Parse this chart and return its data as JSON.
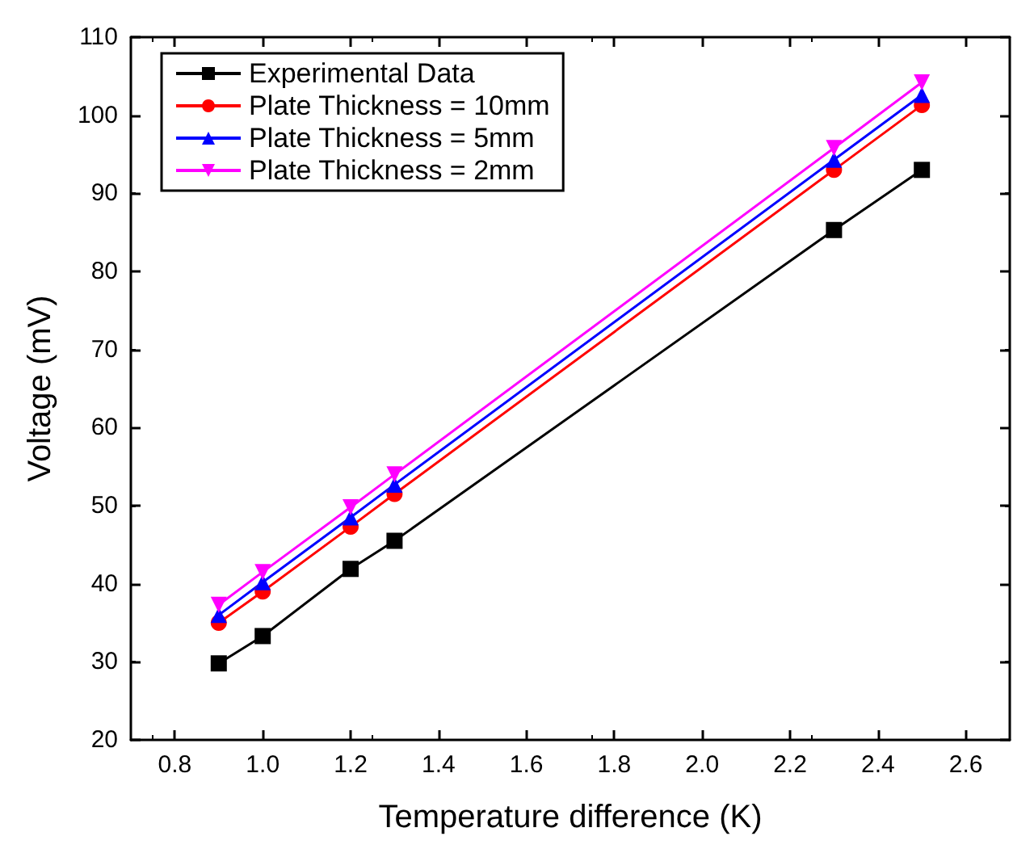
{
  "chart_data": {
    "type": "line",
    "xlabel": "Temperature difference (K)",
    "ylabel": "Voltage (mV)",
    "x": [
      0.9,
      1.0,
      1.2,
      1.3,
      2.3,
      2.5
    ],
    "series": [
      {
        "name": "Experimental Data",
        "color": "#000000",
        "marker": "square",
        "values": [
          29.8,
          33.3,
          41.9,
          45.5,
          85.3,
          93.0
        ]
      },
      {
        "name": "Plate Thickness = 10mm",
        "color": "#ff0000",
        "marker": "circle",
        "values": [
          35.0,
          39.0,
          47.3,
          51.5,
          93.0,
          101.3
        ]
      },
      {
        "name": "Plate Thickness = 5mm",
        "color": "#0000ff",
        "marker": "triangle",
        "values": [
          36.0,
          40.2,
          48.5,
          52.7,
          94.3,
          102.6
        ]
      },
      {
        "name": "Plate Thickness = 2mm",
        "color": "#ff00ff",
        "marker": "triangle-down",
        "values": [
          37.3,
          41.5,
          49.8,
          54.0,
          95.8,
          104.2
        ]
      }
    ],
    "xlim": [
      0.7,
      2.7
    ],
    "xticks": [
      0.8,
      {
        "value": 1.0,
        "label": "1.0"
      },
      1.2,
      1.4,
      1.6,
      1.8,
      {
        "value": 2.0,
        "label": "2.0"
      },
      2.2,
      2.4,
      2.6
    ],
    "ylim": [
      20,
      110
    ],
    "yticks": [
      20,
      30,
      40,
      50,
      60,
      70,
      80,
      90,
      100,
      110
    ],
    "grid": false,
    "legend": "top left",
    "line_style": "solid"
  }
}
